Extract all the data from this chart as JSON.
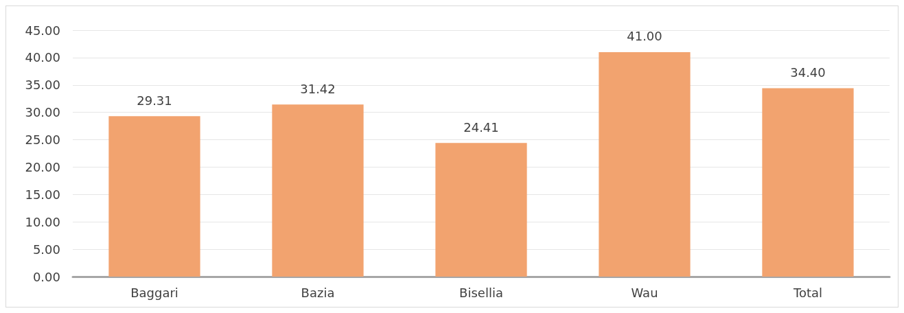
{
  "chart_data": {
    "type": "bar",
    "categories": [
      "Baggari",
      "Bazia",
      "Bisellia",
      "Wau",
      "Total"
    ],
    "values": [
      29.31,
      31.42,
      24.41,
      41,
      34.4
    ],
    "value_labels": [
      "29.31",
      "31.42",
      "24.41",
      "41.00",
      "34.40"
    ],
    "color": "#f2a36f",
    "ylim": [
      0,
      45
    ],
    "yticks": [
      {
        "value": 0,
        "label": "0.00"
      },
      {
        "value": 5,
        "label": "5.00"
      },
      {
        "value": 10,
        "label": "10.00"
      },
      {
        "value": 15,
        "label": "15.00"
      },
      {
        "value": 20,
        "label": "20.00"
      },
      {
        "value": 25,
        "label": "25.00"
      },
      {
        "value": 30,
        "label": "30.00"
      },
      {
        "value": 35,
        "label": "35.00"
      },
      {
        "value": 40,
        "label": "40.00"
      },
      {
        "value": 45,
        "label": "45.00"
      }
    ],
    "grid": "y"
  }
}
